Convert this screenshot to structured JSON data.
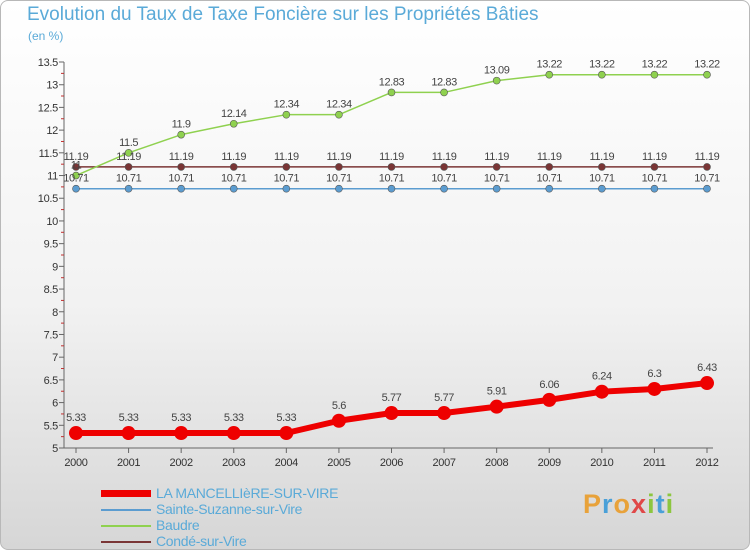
{
  "title": "Evolution du Taux de Taxe Foncière sur les Propriétés Bâties",
  "unit_label": "(en %)",
  "logo": {
    "text": "Proxiti",
    "letters": [
      {
        "ch": "P",
        "color": "#e8a23a"
      },
      {
        "ch": "r",
        "color": "#4aa0d8"
      },
      {
        "ch": "o",
        "color": "#e8a23a"
      },
      {
        "ch": "x",
        "color": "#e04848"
      },
      {
        "ch": "i",
        "color": "#8cc63f"
      },
      {
        "ch": "t",
        "color": "#4aa0d8"
      },
      {
        "ch": "i",
        "color": "#8cc63f"
      }
    ]
  },
  "chart_data": {
    "type": "line",
    "title": "Evolution du Taux de Taxe Foncière sur les Propriétés Bâties",
    "ylabel": "(en %)",
    "xlabel": "",
    "x": [
      "2000",
      "2001",
      "2002",
      "2003",
      "2004",
      "2005",
      "2006",
      "2007",
      "2008",
      "2009",
      "2010",
      "2011",
      "2012"
    ],
    "ylim": [
      5,
      13.5
    ],
    "yticks": [
      "5",
      "5.5",
      "6",
      "6.5",
      "7",
      "7.5",
      "8",
      "8.5",
      "9",
      "9.5",
      "10",
      "10.5",
      "11",
      "11.5",
      "12",
      "12.5",
      "13",
      "13.5"
    ],
    "grid": false,
    "legend_position": "bottom-left",
    "series": [
      {
        "name": "LA MANCELLIèRE-SUR-VIRE",
        "color": "#ee0000",
        "values": [
          5.33,
          5.33,
          5.33,
          5.33,
          5.33,
          5.6,
          5.77,
          5.77,
          5.91,
          6.06,
          6.24,
          6.3,
          6.43
        ],
        "labels": [
          "5.33",
          "5.33",
          "5.33",
          "5.33",
          "5.33",
          "5.6",
          "5.77",
          "5.77",
          "5.91",
          "6.06",
          "6.24",
          "6.3",
          "6.43"
        ]
      },
      {
        "name": "Sainte-Suzanne-sur-Vire",
        "color": "#5b9cd0",
        "values": [
          10.71,
          10.71,
          10.71,
          10.71,
          10.71,
          10.71,
          10.71,
          10.71,
          10.71,
          10.71,
          10.71,
          10.71,
          10.71
        ],
        "labels": [
          "10.71",
          "10.71",
          "10.71",
          "10.71",
          "10.71",
          "10.71",
          "10.71",
          "10.71",
          "10.71",
          "10.71",
          "10.71",
          "10.71",
          "10.71"
        ]
      },
      {
        "name": "Baudre",
        "color": "#8fd14f",
        "values": [
          11.0,
          11.5,
          11.9,
          12.14,
          12.34,
          12.34,
          12.83,
          12.83,
          13.09,
          13.22,
          13.22,
          13.22,
          13.22
        ],
        "labels": [
          "11",
          "11.5",
          "11.9",
          "12.14",
          "12.34",
          "12.34",
          "12.83",
          "12.83",
          "13.09",
          "13.22",
          "13.22",
          "13.22",
          "13.22"
        ]
      },
      {
        "name": "Condé-sur-Vire",
        "color": "#7a3535",
        "values": [
          11.19,
          11.19,
          11.19,
          11.19,
          11.19,
          11.19,
          11.19,
          11.19,
          11.19,
          11.19,
          11.19,
          11.19,
          11.19
        ],
        "labels": [
          "11.19",
          "11.19",
          "11.19",
          "11.19",
          "11.19",
          "11.19",
          "11.19",
          "11.19",
          "11.19",
          "11.19",
          "11.19",
          "11.19",
          "11.19"
        ]
      }
    ]
  }
}
